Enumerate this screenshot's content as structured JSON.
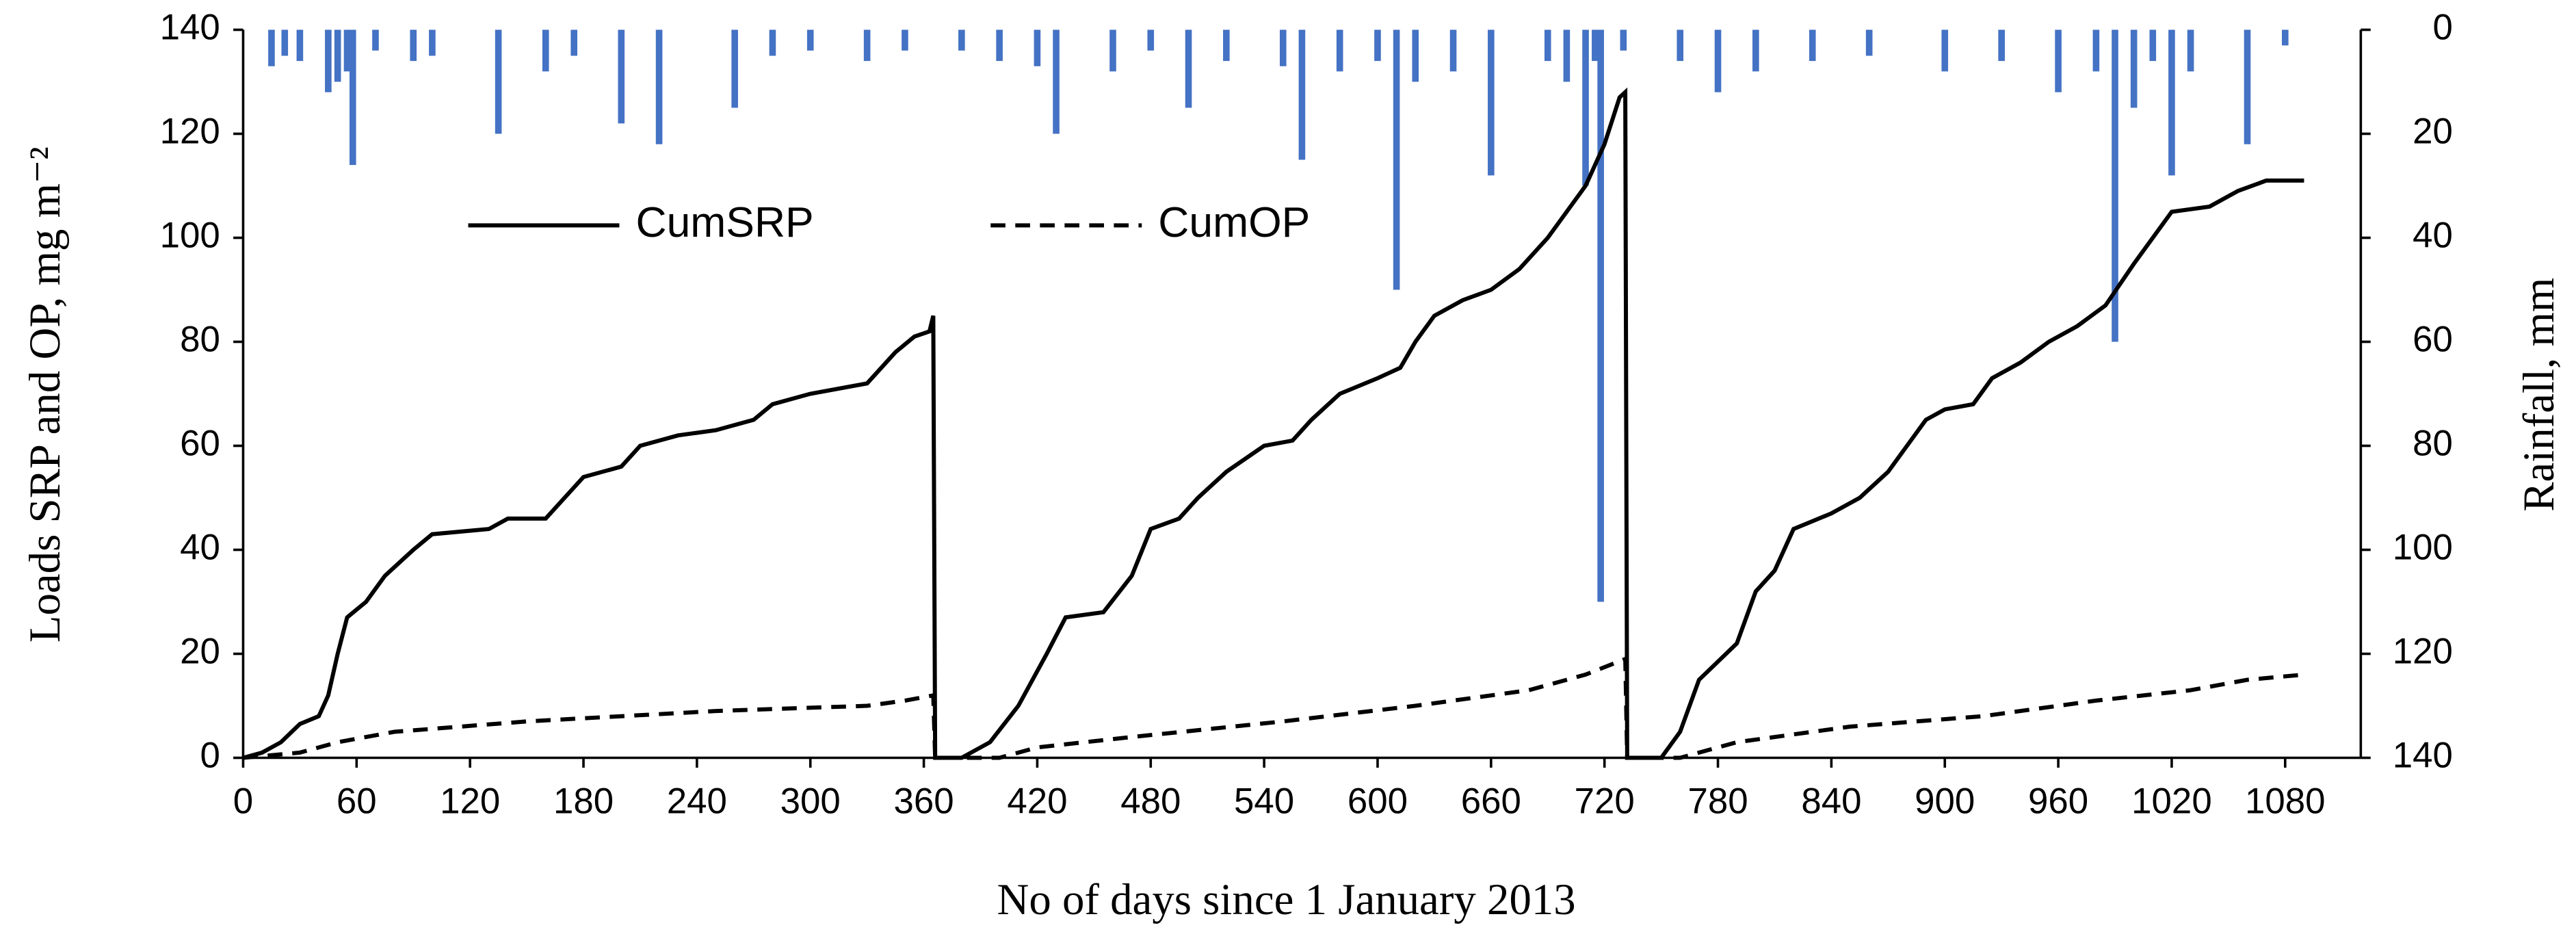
{
  "chart_data": {
    "type": "line",
    "x_label": "No of days since 1 January 2013",
    "y_label": "Loads SRP and OP, mg m⁻²",
    "y2_label": "Rainfall, mm",
    "xlim": [
      0,
      1120
    ],
    "xticks": [
      0,
      60,
      120,
      180,
      240,
      300,
      360,
      420,
      480,
      540,
      600,
      660,
      720,
      780,
      840,
      900,
      960,
      1020,
      1080
    ],
    "ylim": [
      0,
      140
    ],
    "yticks": [
      0,
      20,
      40,
      60,
      80,
      100,
      120,
      140
    ],
    "y2lim": [
      140,
      0
    ],
    "y2ticks": [
      0,
      20,
      40,
      60,
      80,
      100,
      120,
      140
    ],
    "series": [
      {
        "name": "CumSRP",
        "type": "line",
        "color": "#000000",
        "dash": false,
        "x": [
          0,
          10,
          20,
          30,
          40,
          45,
          50,
          55,
          65,
          75,
          90,
          100,
          130,
          140,
          160,
          170,
          180,
          200,
          210,
          230,
          250,
          270,
          280,
          300,
          330,
          345,
          355,
          363,
          365,
          366,
          380,
          395,
          410,
          425,
          435,
          455,
          470,
          480,
          495,
          505,
          520,
          540,
          555,
          565,
          580,
          600,
          612,
          620,
          630,
          645,
          660,
          675,
          690,
          700,
          710,
          720,
          728,
          731,
          732,
          750,
          760,
          770,
          790,
          800,
          810,
          820,
          840,
          855,
          870,
          880,
          890,
          900,
          915,
          925,
          940,
          955,
          970,
          985,
          1000,
          1010,
          1020,
          1040,
          1055,
          1070,
          1090
        ],
        "values": [
          0,
          1,
          3,
          6.5,
          8,
          12,
          20,
          27,
          30,
          35,
          40,
          43,
          44,
          46,
          46,
          50,
          54,
          56,
          60,
          62,
          63,
          65,
          68,
          70,
          72,
          78,
          81,
          82,
          85,
          0,
          0,
          3,
          10,
          20,
          27,
          28,
          35,
          44,
          46,
          50,
          55,
          60,
          61,
          65,
          70,
          73,
          75,
          80,
          85,
          88,
          90,
          94,
          100,
          105,
          110,
          118,
          127,
          128,
          0,
          0,
          5,
          15,
          22,
          32,
          36,
          44,
          47,
          50,
          55,
          60,
          65,
          67,
          68,
          73,
          76,
          80,
          83,
          87,
          95,
          100,
          105,
          106,
          109,
          111,
          111
        ]
      },
      {
        "name": "CumOP",
        "type": "line",
        "color": "#000000",
        "dash": true,
        "x": [
          0,
          30,
          50,
          80,
          150,
          250,
          330,
          350,
          365,
          366,
          400,
          420,
          470,
          550,
          620,
          680,
          710,
          731,
          732,
          760,
          790,
          850,
          920,
          980,
          1030,
          1060,
          1090
        ],
        "values": [
          0,
          1,
          3,
          5,
          7,
          9,
          10,
          11,
          12,
          0,
          0,
          2,
          4,
          7,
          10,
          13,
          16,
          19,
          0,
          0,
          3,
          6,
          8,
          11,
          13,
          15,
          16
        ]
      },
      {
        "type": "bar",
        "axis": "y2",
        "color": "#4472c4",
        "x": [
          15,
          22,
          30,
          45,
          50,
          55,
          58,
          70,
          90,
          100,
          135,
          160,
          175,
          200,
          220,
          260,
          280,
          300,
          330,
          350,
          380,
          400,
          420,
          430,
          460,
          480,
          500,
          520,
          550,
          560,
          580,
          600,
          610,
          620,
          640,
          660,
          690,
          700,
          710,
          715,
          718,
          730,
          760,
          780,
          800,
          830,
          860,
          900,
          930,
          960,
          980,
          990,
          1000,
          1010,
          1020,
          1030,
          1060,
          1080
        ],
        "values": [
          7,
          5,
          6,
          12,
          10,
          8,
          26,
          4,
          6,
          5,
          20,
          8,
          5,
          18,
          22,
          15,
          5,
          4,
          6,
          4,
          4,
          6,
          7,
          20,
          8,
          4,
          15,
          6,
          7,
          25,
          8,
          6,
          50,
          10,
          8,
          28,
          6,
          10,
          30,
          6,
          110,
          4,
          6,
          12,
          8,
          6,
          5,
          8,
          6,
          12,
          8,
          60,
          15,
          6,
          28,
          8,
          22,
          3
        ]
      }
    ]
  }
}
